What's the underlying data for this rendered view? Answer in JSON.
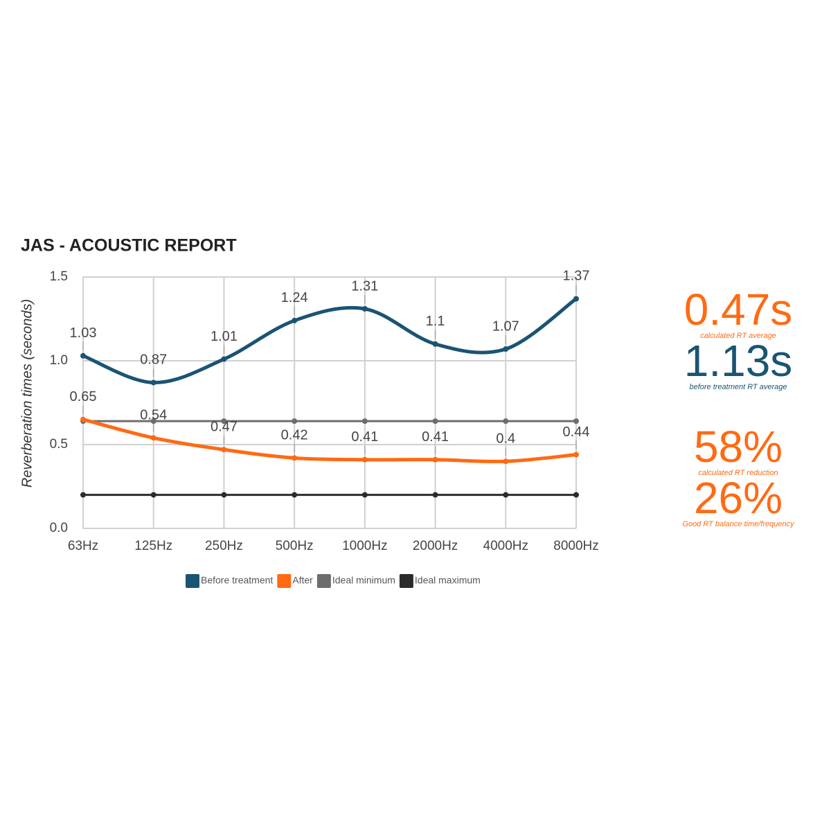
{
  "chart_data": {
    "type": "line",
    "title": "JAS - ACOUSTIC REPORT",
    "y_label": "Reverberation times (seconds)",
    "categories": [
      "63Hz",
      "125Hz",
      "250Hz",
      "500Hz",
      "1000Hz",
      "2000Hz",
      "4000Hz",
      "8000Hz"
    ],
    "series": [
      {
        "name": "Before treatment",
        "color": "#1a5472",
        "data_labels": true,
        "values": [
          1.03,
          0.87,
          1.01,
          1.24,
          1.31,
          1.1,
          1.07,
          1.37
        ]
      },
      {
        "name": "After",
        "color": "#ff6a13",
        "data_labels": true,
        "values": [
          0.65,
          0.54,
          0.47,
          0.42,
          0.41,
          0.41,
          0.4,
          0.44
        ]
      },
      {
        "name": "Ideal minimum",
        "color": "#6d6d6d",
        "data_labels": false,
        "values": [
          0.64,
          0.64,
          0.64,
          0.64,
          0.64,
          0.64,
          0.64,
          0.64
        ]
      },
      {
        "name": "Ideal maximum",
        "color": "#2b2b2b",
        "data_labels": false,
        "values": [
          0.2,
          0.2,
          0.2,
          0.2,
          0.2,
          0.2,
          0.2,
          0.2
        ]
      }
    ],
    "ylim": [
      0,
      1.5
    ],
    "yticks": [
      {
        "value": 0,
        "label": "0.0"
      },
      0.5,
      {
        "value": 1,
        "label": "1.0"
      },
      1.5
    ],
    "grid": true,
    "smooth": true,
    "legend": "bottom"
  },
  "stats": [
    {
      "value": "0.47s",
      "caption": "calculated RT average",
      "color": "#ff6a13"
    },
    {
      "value": "1.13s",
      "caption": "before treatment RT average",
      "color": "#1a5472"
    },
    {
      "value": "58%",
      "caption": "calculated RT reduction",
      "color": "#ff6a13"
    },
    {
      "value": "26%",
      "caption": "Good RT balance time/frequency",
      "color": "#ff6a13"
    }
  ]
}
